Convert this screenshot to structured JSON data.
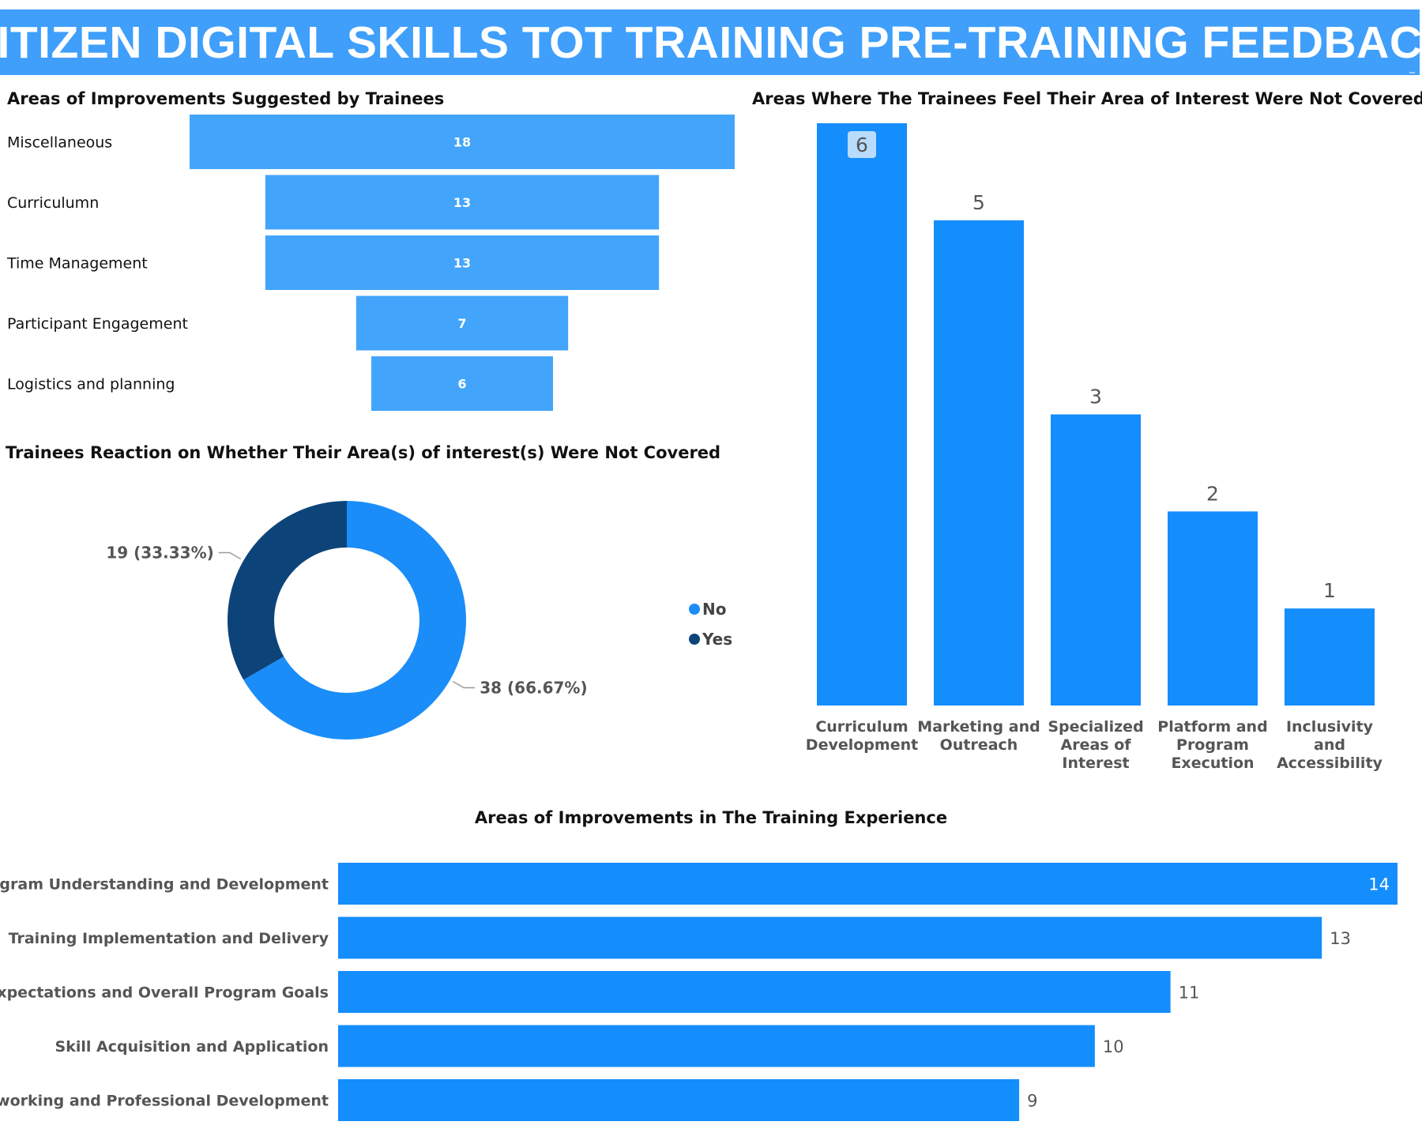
{
  "header": {
    "title": "CITIZEN DIGITAL SKILLS TOT TRAINING PRE-TRAINING FEEDBACK",
    "mark": "_"
  },
  "colors": {
    "header_bg": "#3f9ffb",
    "funnel_bar": "#42a5fb",
    "bar": "#148dfd",
    "donut_no": "#1b8df8",
    "donut_yes": "#0c4479",
    "text": "#111111",
    "muted": "#555555"
  },
  "chart_data": [
    {
      "id": "improvements-suggested",
      "type": "bar",
      "orientation": "horizontal-funnel",
      "title": "Areas of Improvements Suggested by Trainees",
      "categories": [
        "Miscellaneous",
        "Curriculumn",
        "Time Management",
        "Participant Engagement",
        "Logistics and planning"
      ],
      "values": [
        18,
        13,
        13,
        7,
        6
      ],
      "data_labels": [
        "18",
        "13",
        "13",
        "7",
        "6"
      ]
    },
    {
      "id": "areas-not-covered",
      "type": "bar",
      "orientation": "vertical",
      "title": "Areas Where The Trainees Feel Their Area of Interest Were Not Covered",
      "categories": [
        [
          "Curriculum",
          "Development"
        ],
        [
          "Marketing and",
          "Outreach"
        ],
        [
          "Specialized",
          "Areas of",
          "Interest"
        ],
        [
          "Platform and",
          "Program",
          "Execution"
        ],
        [
          "Inclusivity",
          "and",
          "Accessibility"
        ]
      ],
      "values": [
        6,
        5,
        3,
        2,
        1
      ],
      "data_labels": [
        "6",
        "5",
        "3",
        "2",
        "1"
      ],
      "ylim": [
        0,
        6
      ],
      "grid": false
    },
    {
      "id": "reaction-donut",
      "type": "pie",
      "style": "donut",
      "title": "Trainees Reaction on Whether Their Area(s) of interest(s) Were Not Covered",
      "slices": [
        {
          "name": "No",
          "value": 38,
          "percent": 66.67,
          "label": "38 (66.67%)"
        },
        {
          "name": "Yes",
          "value": 19,
          "percent": 33.33,
          "label": "19 (33.33%)"
        }
      ],
      "legend": {
        "placement": "right",
        "entries": [
          "No",
          "Yes"
        ]
      }
    },
    {
      "id": "training-experience",
      "type": "bar",
      "orientation": "horizontal",
      "title": "Areas of Improvements in The Training Experience",
      "categories": [
        "Program Understanding and Development",
        "Training Implementation and Delivery",
        "Expectations and Overall Program Goals",
        "Skill Acquisition and Application",
        "Networking and Professional Development"
      ],
      "values": [
        14,
        13,
        11,
        10,
        9
      ],
      "data_labels": [
        "14",
        "13",
        "11",
        "10",
        "9"
      ],
      "xlim": [
        0,
        14
      ],
      "grid": false
    }
  ]
}
